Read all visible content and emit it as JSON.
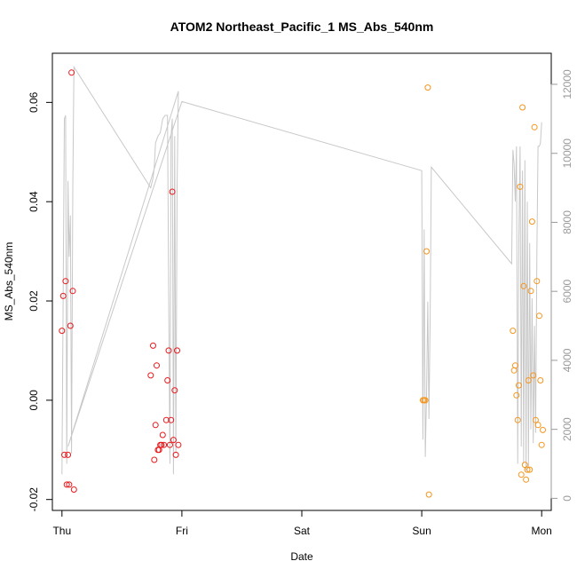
{
  "chart_data": {
    "type": "scatter",
    "title": "ATOM2 Northeast_Pacific_1 MS_Abs_540nm",
    "xlabel": "Date",
    "ylabel": "MS_Abs_540nm",
    "x_axis": {
      "range_days": [
        -0.08,
        4.08
      ],
      "ticks": [
        {
          "value": 0,
          "label": "Thu"
        },
        {
          "value": 1,
          "label": "Fri"
        },
        {
          "value": 2,
          "label": "Sat"
        },
        {
          "value": 3,
          "label": "Sun"
        },
        {
          "value": 4,
          "label": "Mon"
        }
      ]
    },
    "y_axis": {
      "range": [
        -0.0222,
        0.0699
      ],
      "ticks": [
        {
          "value": -0.02,
          "label": "-0.02"
        },
        {
          "value": 0.0,
          "label": "0.00"
        },
        {
          "value": 0.02,
          "label": "0.02"
        },
        {
          "value": 0.04,
          "label": "0.04"
        },
        {
          "value": 0.06,
          "label": "0.06"
        }
      ]
    },
    "y2_axis": {
      "range": [
        -350,
        12900
      ],
      "ticks": [
        {
          "value": 0,
          "label": "0"
        },
        {
          "value": 2000,
          "label": "2000"
        },
        {
          "value": 4000,
          "label": "4000"
        },
        {
          "value": 6000,
          "label": "6000"
        },
        {
          "value": 8000,
          "label": "8000"
        },
        {
          "value": 10000,
          "label": "10000"
        },
        {
          "value": 12000,
          "label": "12000"
        }
      ]
    },
    "grid": false,
    "colors": {
      "series_1": "#e8191c",
      "series_2": "#f5951d",
      "line": "#c8c8c8"
    },
    "series": [
      {
        "values": [
          [
            0.0,
            0.014
          ],
          [
            0.01,
            0.021
          ],
          [
            0.02,
            -0.011
          ],
          [
            0.03,
            0.024
          ],
          [
            0.04,
            -0.017
          ],
          [
            0.05,
            -0.011
          ],
          [
            0.06,
            -0.017
          ],
          [
            0.07,
            0.015
          ],
          [
            0.08,
            0.066
          ],
          [
            0.09,
            0.022
          ],
          [
            0.1,
            -0.018
          ],
          [
            0.74,
            0.005
          ],
          [
            0.76,
            0.011
          ],
          [
            0.77,
            -0.012
          ],
          [
            0.78,
            -0.005
          ],
          [
            0.79,
            0.007
          ],
          [
            0.8,
            -0.01
          ],
          [
            0.81,
            -0.01
          ],
          [
            0.82,
            -0.009
          ],
          [
            0.83,
            -0.009
          ],
          [
            0.84,
            -0.007
          ],
          [
            0.85,
            -0.009
          ],
          [
            0.87,
            -0.004
          ],
          [
            0.88,
            0.004
          ],
          [
            0.89,
            0.01
          ],
          [
            0.9,
            -0.009
          ],
          [
            0.91,
            -0.004
          ],
          [
            0.92,
            0.042
          ],
          [
            0.93,
            -0.008
          ],
          [
            0.94,
            0.002
          ],
          [
            0.95,
            -0.011
          ],
          [
            0.96,
            0.01
          ],
          [
            0.97,
            -0.009
          ]
        ]
      },
      {
        "values": [
          [
            3.01,
            0.0
          ],
          [
            3.02,
            0.0
          ],
          [
            3.03,
            0.0
          ],
          [
            3.04,
            0.03
          ],
          [
            3.05,
            0.063
          ],
          [
            3.06,
            -0.019
          ],
          [
            3.76,
            0.014
          ],
          [
            3.77,
            0.006
          ],
          [
            3.78,
            0.007
          ],
          [
            3.79,
            0.001
          ],
          [
            3.8,
            -0.004
          ],
          [
            3.81,
            0.003
          ],
          [
            3.82,
            0.043
          ],
          [
            3.83,
            -0.015
          ],
          [
            3.84,
            0.059
          ],
          [
            3.85,
            0.023
          ],
          [
            3.86,
            -0.013
          ],
          [
            3.87,
            -0.016
          ],
          [
            3.88,
            -0.014
          ],
          [
            3.89,
            0.004
          ],
          [
            3.9,
            -0.014
          ],
          [
            3.91,
            0.022
          ],
          [
            3.92,
            0.036
          ],
          [
            3.93,
            0.005
          ],
          [
            3.94,
            0.055
          ],
          [
            3.95,
            -0.004
          ],
          [
            3.96,
            0.024
          ],
          [
            3.97,
            -0.005
          ],
          [
            3.98,
            0.017
          ],
          [
            3.99,
            0.004
          ],
          [
            4.0,
            -0.009
          ],
          [
            4.01,
            -0.006
          ]
        ]
      }
    ],
    "line_series": {
      "axis": "right",
      "values": [
        [
          0.0,
          700
        ],
        [
          0.02,
          11000
        ],
        [
          0.03,
          11100
        ],
        [
          0.04,
          1000
        ],
        [
          0.05,
          9200
        ],
        [
          0.06,
          7000
        ],
        [
          0.07,
          8200
        ],
        [
          0.08,
          1300
        ],
        [
          0.09,
          9000
        ],
        [
          0.1,
          12500
        ],
        [
          0.74,
          9000
        ],
        [
          0.76,
          9300
        ],
        [
          0.77,
          9600
        ],
        [
          0.78,
          10300
        ],
        [
          0.8,
          10500
        ],
        [
          0.82,
          10600
        ],
        [
          0.84,
          11000
        ],
        [
          0.86,
          11100
        ],
        [
          0.88,
          11100
        ],
        [
          0.89,
          6000
        ],
        [
          0.9,
          1000
        ],
        [
          0.91,
          10500
        ],
        [
          0.92,
          11000
        ],
        [
          0.93,
          700
        ],
        [
          0.94,
          10500
        ],
        [
          0.95,
          1300
        ],
        [
          0.96,
          9000
        ],
        [
          0.97,
          11800
        ],
        [
          0.05,
          1500
        ],
        [
          1.0,
          11500
        ],
        [
          3.0,
          9500
        ],
        [
          3.01,
          1700
        ],
        [
          3.02,
          7800
        ],
        [
          3.03,
          1200
        ],
        [
          3.04,
          3000
        ],
        [
          3.05,
          5700
        ],
        [
          3.06,
          2300
        ],
        [
          3.07,
          5300
        ],
        [
          3.08,
          9600
        ],
        [
          3.75,
          6800
        ],
        [
          3.76,
          10100
        ],
        [
          3.77,
          9700
        ],
        [
          3.78,
          8600
        ],
        [
          3.79,
          10200
        ],
        [
          3.8,
          1000
        ],
        [
          3.81,
          7500
        ],
        [
          3.82,
          10200
        ],
        [
          3.83,
          1500
        ],
        [
          3.84,
          9500
        ],
        [
          3.85,
          1000
        ],
        [
          3.86,
          9800
        ],
        [
          3.87,
          800
        ],
        [
          3.88,
          8600
        ],
        [
          3.89,
          900
        ],
        [
          3.9,
          7400
        ],
        [
          3.91,
          2000
        ],
        [
          3.92,
          5800
        ],
        [
          3.93,
          1600
        ],
        [
          3.94,
          5000
        ],
        [
          3.95,
          1900
        ],
        [
          3.96,
          7100
        ],
        [
          3.97,
          10200
        ],
        [
          3.98,
          10200
        ],
        [
          3.99,
          10300
        ],
        [
          4.0,
          10900
        ]
      ]
    }
  }
}
